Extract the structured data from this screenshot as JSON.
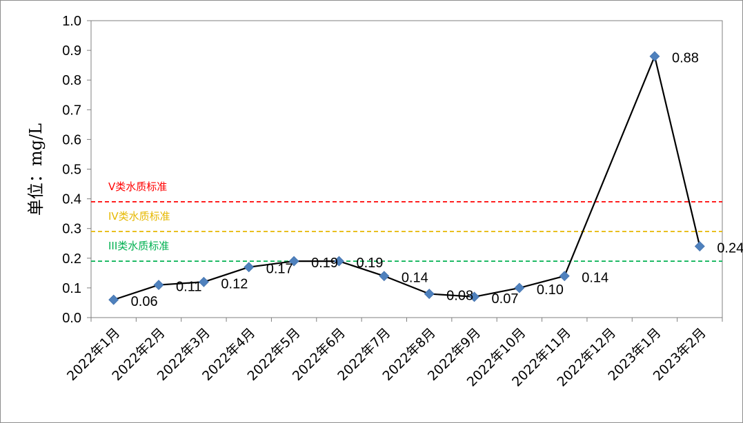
{
  "chart_data": {
    "type": "line",
    "title": "",
    "ylabel": "单位：mg/L",
    "xlabel": "",
    "ylim": [
      0,
      1.0
    ],
    "yticks": [
      "0.0",
      "0.1",
      "0.2",
      "0.3",
      "0.4",
      "0.5",
      "0.6",
      "0.7",
      "0.8",
      "0.9",
      "1.0"
    ],
    "categories": [
      "2022年1月",
      "2022年2月",
      "2022年3月",
      "2022年4月",
      "2022年5月",
      "2022年6月",
      "2022年7月",
      "2022年8月",
      "2022年9月",
      "2022年10月",
      "2022年11月",
      "2022年12月",
      "2023年1月",
      "2023年2月"
    ],
    "series": [
      {
        "values": [
          0.06,
          0.11,
          0.12,
          0.17,
          0.19,
          0.19,
          0.14,
          0.08,
          0.07,
          0.1,
          0.14,
          null,
          0.88,
          0.24
        ],
        "labels": [
          "0.06",
          "0.11",
          "0.12",
          "0.17",
          "0.19",
          "0.19",
          "0.14",
          "0.08",
          "0.07",
          "0.10",
          "0.14",
          "",
          "0.88",
          "0.24"
        ],
        "color": "#000000",
        "marker_color": "#4f81bd",
        "marker": "diamond"
      }
    ],
    "reference_lines": [
      {
        "label": "V类水质标准",
        "value": 0.39,
        "color": "#ff0000"
      },
      {
        "label": "IV类水质标准",
        "value": 0.29,
        "color": "#e6b800"
      },
      {
        "label": "III类水质标准",
        "value": 0.19,
        "color": "#00b050"
      }
    ],
    "grid": false,
    "legend": "none"
  }
}
